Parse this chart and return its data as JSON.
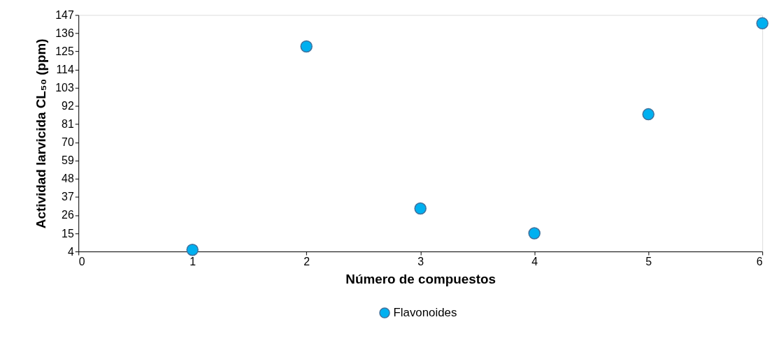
{
  "chart_data": {
    "type": "scatter",
    "xlabel": "Número de compuestos",
    "ylabel": "Actividad larvicida CL₅₀ (ppm)",
    "x": [
      1,
      2,
      3,
      4,
      5,
      6
    ],
    "series": [
      {
        "name": "Flavonoides",
        "color": "#00b0f0",
        "values": [
          5,
          128,
          30,
          15,
          87,
          142
        ]
      }
    ],
    "xlim": [
      0,
      6
    ],
    "xticks": [
      0,
      1,
      2,
      3,
      4,
      5,
      6
    ],
    "ylim": [
      4,
      147
    ],
    "yticks": [
      4,
      15,
      26,
      37,
      48,
      59,
      70,
      81,
      92,
      103,
      114,
      125,
      136,
      147
    ],
    "grid": false,
    "legend": "bottom",
    "marker": "circle"
  }
}
